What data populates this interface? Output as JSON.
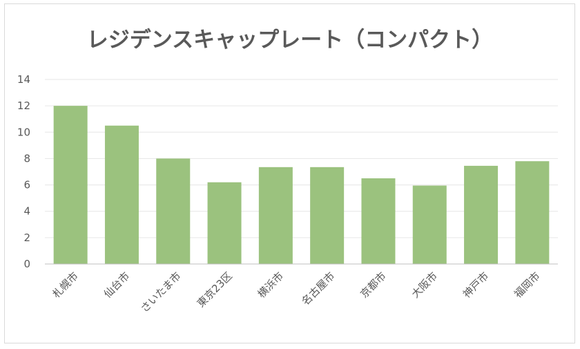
{
  "chart_data": {
    "type": "bar",
    "title": "レジデンスキャップレート（コンパクト）",
    "categories": [
      "札幌市",
      "仙台市",
      "さいたま市",
      "東京23区",
      "横浜市",
      "名古屋市",
      "京都市",
      "大阪市",
      "神戸市",
      "福岡市"
    ],
    "values": [
      12.0,
      10.5,
      8.0,
      6.2,
      7.35,
      7.35,
      6.5,
      5.95,
      7.45,
      7.8
    ],
    "yticks": [
      "0",
      "2",
      "4",
      "6",
      "8",
      "10",
      "12",
      "14"
    ],
    "ylim": [
      0,
      14
    ],
    "xlabel": "",
    "ylabel": "",
    "grid": true,
    "legend": "none",
    "bar_color": "#9bc27e",
    "grid_color": "#e6e6e6",
    "axis_color": "#bfbfbf",
    "text_color": "#595959"
  }
}
